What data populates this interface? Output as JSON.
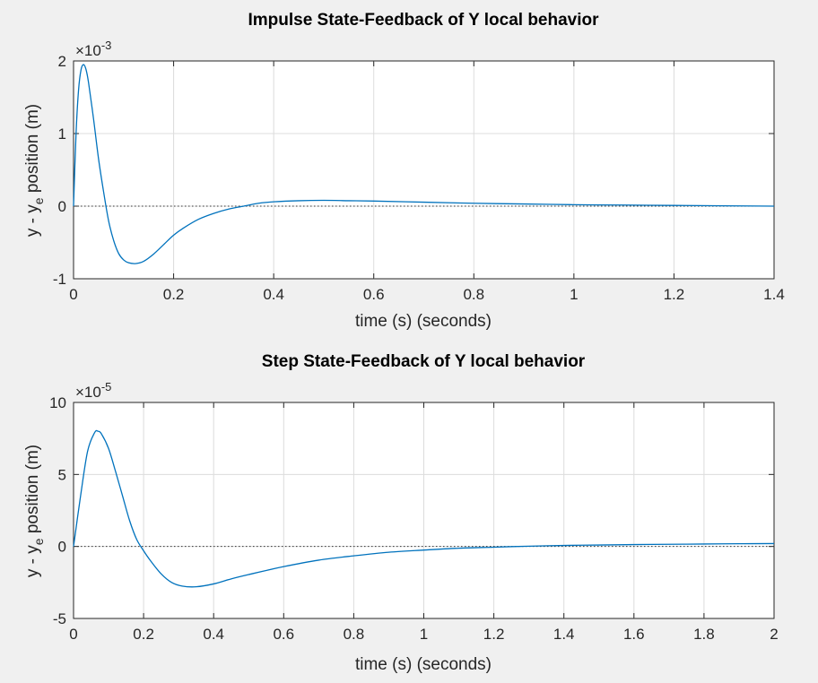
{
  "chart_data": [
    {
      "type": "line",
      "title": "Impulse State-Feedback of Y local behavior",
      "xlabel": "time (s) (seconds)",
      "ylabel_main": "y - y",
      "ylabel_sub": "e",
      "ylabel_rest": " position (m)",
      "exponent_base": "×10",
      "exponent_power": "-3",
      "xlim": [
        0,
        1.4
      ],
      "ylim": [
        -1,
        2
      ],
      "xticks": [
        0,
        0.2,
        0.4,
        0.6,
        0.8,
        1,
        1.2,
        1.4
      ],
      "xtick_labels": [
        "0",
        "0.2",
        "0.4",
        "0.6",
        "0.8",
        "1",
        "1.2",
        "1.4"
      ],
      "yticks": [
        -1,
        0,
        1,
        2
      ],
      "ytick_labels": [
        "-1",
        "0",
        "1",
        "2"
      ],
      "grid": true,
      "zero_line": true,
      "series_color": "#0072bd",
      "series": [
        {
          "x": [
            0,
            0.005,
            0.01,
            0.015,
            0.02,
            0.025,
            0.03,
            0.04,
            0.05,
            0.06,
            0.07,
            0.08,
            0.09,
            0.1,
            0.11,
            0.125,
            0.14,
            0.16,
            0.18,
            0.2,
            0.22,
            0.25,
            0.28,
            0.31,
            0.34,
            0.37,
            0.4,
            0.45,
            0.5,
            0.55,
            0.6,
            0.7,
            0.8,
            0.9,
            1.0,
            1.1,
            1.2,
            1.3,
            1.4
          ],
          "y": [
            0,
            1.0,
            1.6,
            1.88,
            1.95,
            1.88,
            1.7,
            1.2,
            0.65,
            0.2,
            -0.2,
            -0.47,
            -0.65,
            -0.74,
            -0.78,
            -0.79,
            -0.76,
            -0.66,
            -0.53,
            -0.4,
            -0.3,
            -0.18,
            -0.1,
            -0.04,
            0.0,
            0.04,
            0.06,
            0.075,
            0.08,
            0.075,
            0.07,
            0.055,
            0.04,
            0.03,
            0.02,
            0.015,
            0.01,
            0.005,
            0.0
          ]
        }
      ]
    },
    {
      "type": "line",
      "title": "Step State-Feedback of Y local behavior",
      "xlabel": "time (s) (seconds)",
      "ylabel_main": "y - y",
      "ylabel_sub": "e",
      "ylabel_rest": " position (m)",
      "exponent_base": "×10",
      "exponent_power": "-5",
      "xlim": [
        0,
        2
      ],
      "ylim": [
        -5,
        10
      ],
      "xticks": [
        0,
        0.2,
        0.4,
        0.6,
        0.8,
        1,
        1.2,
        1.4,
        1.6,
        1.8,
        2
      ],
      "xtick_labels": [
        "0",
        "0.2",
        "0.4",
        "0.6",
        "0.8",
        "1",
        "1.2",
        "1.4",
        "1.6",
        "1.8",
        "2"
      ],
      "yticks": [
        -5,
        0,
        5,
        10
      ],
      "ytick_labels": [
        "-5",
        "0",
        "5",
        "10"
      ],
      "grid": true,
      "zero_line": true,
      "series_color": "#0072bd",
      "series": [
        {
          "x": [
            0,
            0.02,
            0.04,
            0.06,
            0.07,
            0.08,
            0.1,
            0.12,
            0.14,
            0.16,
            0.18,
            0.2,
            0.22,
            0.25,
            0.28,
            0.31,
            0.35,
            0.4,
            0.45,
            0.5,
            0.6,
            0.7,
            0.8,
            0.9,
            1.0,
            1.1,
            1.2,
            1.3,
            1.4,
            1.5,
            1.6,
            1.7,
            1.8,
            1.9,
            2.0
          ],
          "y": [
            0,
            3.5,
            6.6,
            7.9,
            8.0,
            7.8,
            6.8,
            5.2,
            3.5,
            1.8,
            0.5,
            -0.3,
            -1.0,
            -1.9,
            -2.5,
            -2.75,
            -2.8,
            -2.6,
            -2.25,
            -1.95,
            -1.4,
            -0.95,
            -0.65,
            -0.4,
            -0.25,
            -0.12,
            -0.05,
            0.02,
            0.07,
            0.1,
            0.13,
            0.15,
            0.17,
            0.19,
            0.2
          ]
        }
      ]
    }
  ]
}
